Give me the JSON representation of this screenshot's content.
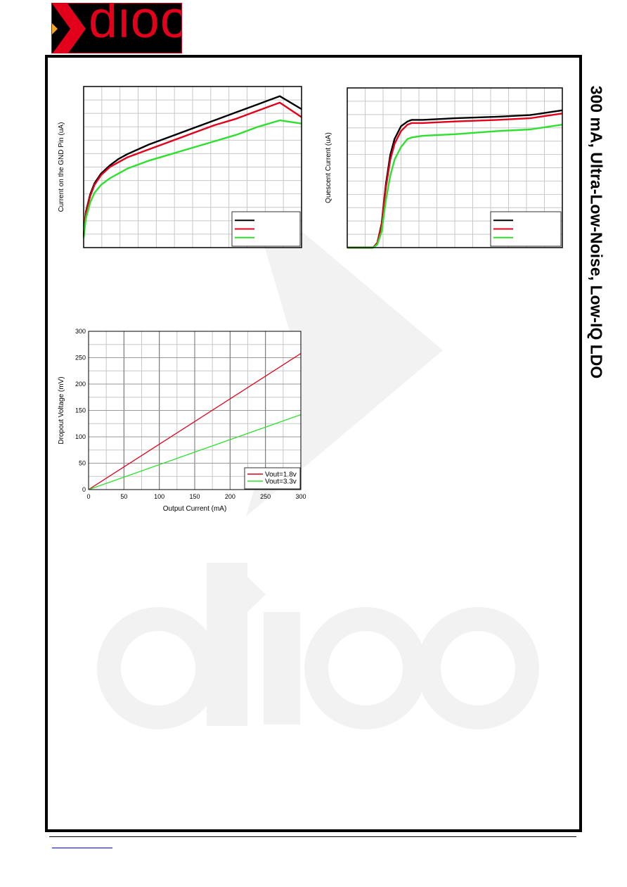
{
  "header": {
    "logo_text": "dioo",
    "side_title": "300 mA, Ultra-Low-Noise, Low-IQ LDO"
  },
  "colors": {
    "black_series": "#000000",
    "red_series": "#e2001a",
    "green_series": "#2ee02e",
    "grid": "#c8c8c8",
    "watermark": "#f2f2f2"
  },
  "chart_data": [
    {
      "type": "line",
      "title": "",
      "xlabel": "",
      "ylabel": "Current on the GND Pin (uA)",
      "xlim": [
        0,
        100
      ],
      "ylim": [
        0,
        100
      ],
      "legend": "bottom-right",
      "grid": true,
      "x_unlabeled": true,
      "series": [
        {
          "color": "#000000",
          "x": [
            0,
            1,
            3,
            5,
            8,
            12,
            16,
            20,
            30,
            40,
            50,
            60,
            70,
            80,
            90,
            100
          ],
          "y": [
            8,
            22,
            33,
            40,
            46,
            51,
            55,
            58,
            64,
            69,
            74,
            79,
            84,
            89,
            94,
            86
          ]
        },
        {
          "color": "#e2001a",
          "x": [
            0,
            1,
            3,
            5,
            8,
            12,
            16,
            20,
            30,
            40,
            50,
            60,
            70,
            80,
            90,
            100
          ],
          "y": [
            7,
            21,
            32,
            39,
            45,
            50,
            53,
            56,
            61,
            66,
            71,
            76,
            80,
            85,
            90,
            81
          ]
        },
        {
          "color": "#2ee02e",
          "x": [
            0,
            1,
            3,
            5,
            8,
            12,
            16,
            20,
            30,
            40,
            50,
            60,
            70,
            80,
            90,
            100
          ],
          "y": [
            6,
            18,
            28,
            34,
            39,
            43,
            46,
            49,
            54,
            58,
            62,
            66,
            70,
            75,
            79,
            77
          ]
        }
      ]
    },
    {
      "type": "line",
      "title": "",
      "xlabel": "",
      "ylabel": "Quescent Current (uA)",
      "xlim": [
        0,
        100
      ],
      "ylim": [
        0,
        100
      ],
      "legend": "bottom-right",
      "grid": true,
      "x_unlabeled": true,
      "series": [
        {
          "color": "#000000",
          "x": [
            0,
            10,
            12,
            14,
            16,
            17,
            18,
            20,
            22,
            25,
            28,
            30,
            35,
            50,
            70,
            85,
            100
          ],
          "y": [
            0,
            0,
            0,
            3,
            15,
            28,
            40,
            58,
            68,
            76,
            79,
            80,
            80,
            81,
            82,
            83,
            86
          ]
        },
        {
          "color": "#e2001a",
          "x": [
            0,
            10,
            12,
            14,
            16,
            17,
            18,
            20,
            22,
            25,
            28,
            30,
            35,
            50,
            70,
            85,
            100
          ],
          "y": [
            0,
            0,
            0,
            3,
            14,
            27,
            38,
            55,
            65,
            73,
            77,
            78,
            78,
            79,
            80,
            81,
            84
          ]
        },
        {
          "color": "#2ee02e",
          "x": [
            0,
            10,
            12,
            14,
            16,
            17,
            18,
            20,
            22,
            25,
            28,
            30,
            35,
            50,
            70,
            85,
            100
          ],
          "y": [
            0,
            0,
            0,
            2,
            10,
            20,
            30,
            45,
            55,
            63,
            68,
            69,
            70,
            71,
            73,
            74,
            77
          ]
        }
      ]
    },
    {
      "type": "line",
      "title": "",
      "xlabel": "Output Current (mA)",
      "ylabel": "Dropout Voltage (mV)",
      "xlim": [
        0,
        300
      ],
      "ylim": [
        0,
        300
      ],
      "xticks": [
        "0",
        "50",
        "100",
        "150",
        "200",
        "250",
        "300"
      ],
      "yticks": [
        "0",
        "50",
        "100",
        "150",
        "200",
        "250",
        "300"
      ],
      "legend": "bottom-right",
      "grid": true,
      "series": [
        {
          "name": "Vout=1.8v",
          "color": "#e2001a",
          "x": [
            0,
            300
          ],
          "y": [
            0,
            258
          ]
        },
        {
          "name": "Vout=3.3v",
          "color": "#2ee02e",
          "x": [
            0,
            300
          ],
          "y": [
            0,
            142
          ]
        }
      ]
    }
  ]
}
